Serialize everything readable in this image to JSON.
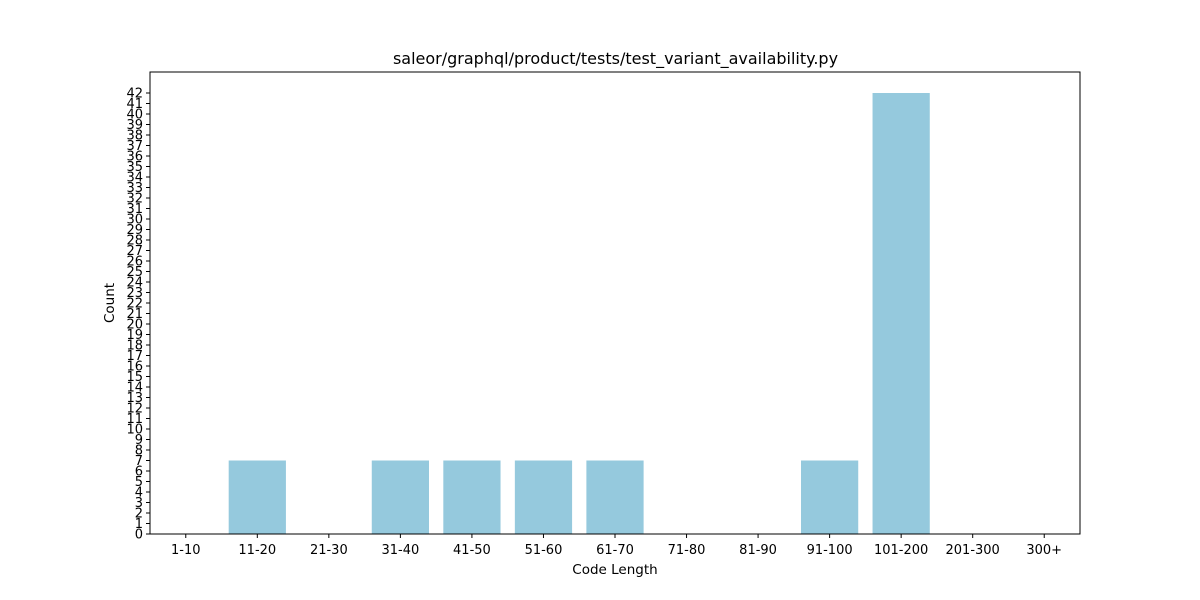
{
  "chart_data": {
    "type": "bar",
    "title": "saleor/graphql/product/tests/test_variant_availability.py",
    "xlabel": "Code Length",
    "ylabel": "Count",
    "categories": [
      "1-10",
      "11-20",
      "21-30",
      "31-40",
      "41-50",
      "51-60",
      "61-70",
      "71-80",
      "81-90",
      "91-100",
      "101-200",
      "201-300",
      "300+"
    ],
    "values": [
      0,
      7,
      0,
      7,
      7,
      7,
      7,
      0,
      0,
      7,
      42,
      0,
      0
    ],
    "ylim": [
      0,
      44
    ],
    "yticks": [
      0,
      1,
      2,
      3,
      4,
      5,
      6,
      7,
      8,
      9,
      10,
      11,
      12,
      13,
      14,
      15,
      16,
      17,
      18,
      19,
      20,
      21,
      22,
      23,
      24,
      25,
      26,
      27,
      28,
      29,
      30,
      31,
      32,
      33,
      34,
      35,
      36,
      37,
      38,
      39,
      40,
      41,
      42
    ],
    "bar_color": "#95c9dd",
    "grid": false,
    "legend": "none"
  }
}
